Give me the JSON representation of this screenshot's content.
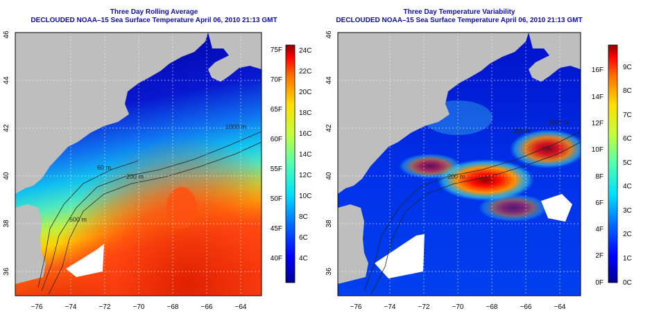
{
  "left_panel": {
    "title_line1": "Three Day Rolling Average",
    "title_line2": "DECLOUDED NOAA–15 Sea Surface Temperature April 06, 2010 21:13 GMT",
    "lat_ticks": [
      "46",
      "44",
      "42",
      "40",
      "38",
      "36"
    ],
    "lon_ticks": [
      "−76",
      "−74",
      "−72",
      "−70",
      "−68",
      "−66",
      "−64"
    ],
    "colorbar_f": [
      "75F",
      "70F",
      "65F",
      "60F",
      "55F",
      "50F",
      "45F",
      "40F"
    ],
    "colorbar_c": [
      "24C",
      "22C",
      "20C",
      "18C",
      "16C",
      "14C",
      "12C",
      "10C",
      "8C",
      "6C",
      "4C"
    ],
    "contour_labels": [
      "200 m",
      "1000 m",
      "500 m",
      "60 m"
    ]
  },
  "right_panel": {
    "title_line1": "Three Day Temperature Variability",
    "title_line2": "DECLOUDED NOAA–15 Sea Surface Temperature April 06, 2010 21:13 GMT",
    "lat_ticks": [
      "46",
      "44",
      "42",
      "40",
      "38",
      "36"
    ],
    "lon_ticks": [
      "−76",
      "−74",
      "−72",
      "−70",
      "−68",
      "−66",
      "−64"
    ],
    "colorbar_f": [
      "16F",
      "14F",
      "12F",
      "10F",
      "8F",
      "6F",
      "4F",
      "2F",
      "0F"
    ],
    "colorbar_c": [
      "9C",
      "8C",
      "7C",
      "6C",
      "5C",
      "4C",
      "3C",
      "2C",
      "1C",
      "0C"
    ],
    "contour_labels": [
      "200 m",
      "1000 m",
      "200 m"
    ]
  },
  "colors": {
    "land": "#bebebe",
    "cloud": "#ffffff",
    "title": "#1010a0",
    "jet_scale": [
      "#00008f",
      "#0000ff",
      "#0070ff",
      "#00dfff",
      "#50ffaf",
      "#bfff40",
      "#ffdf00",
      "#ff7000",
      "#ff0000",
      "#8f0000"
    ]
  }
}
